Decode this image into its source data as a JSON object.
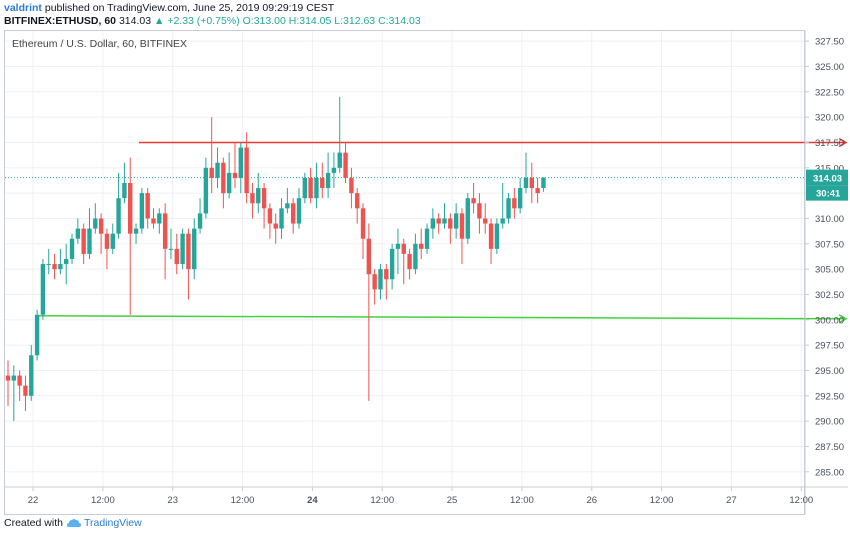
{
  "header": {
    "author": "valdrint",
    "published": "published on TradingView.com, June 25, 2019 09:29:19 CEST",
    "symbol": "BITFINEX:ETHUSD, 60",
    "last": "314.03",
    "change": "+2.33 (+0.75%)",
    "ohlc": "O:313.00 H:314.05 L:312.63 C:314.03"
  },
  "footer": {
    "created_with": "Created with",
    "brand": "TradingView"
  },
  "colors": {
    "up": "#26a69a",
    "down": "#ef5350",
    "resistance": "#e53935",
    "support": "#43d13d",
    "last_price_badge": "#26a69a",
    "grid": "#eef0f4",
    "axis": "#c8ccd6"
  },
  "chart_data": {
    "type": "candlestick",
    "title": "Ethereum / U.S. Dollar, 60, BITFINEX",
    "x_tick_labels": [
      "22",
      "12:00",
      "23",
      "12:00",
      "24",
      "12:00",
      "25",
      "12:00",
      "26",
      "12:00",
      "27",
      "12:00"
    ],
    "y_tick_labels": [
      "327.50",
      "325.00",
      "322.50",
      "320.00",
      "317.50",
      "315.00",
      "312.50",
      "310.00",
      "307.50",
      "305.00",
      "302.50",
      "300.00",
      "297.50",
      "295.00",
      "292.50",
      "290.00",
      "287.50",
      "285.00"
    ],
    "ylim": [
      283.5,
      328.5
    ],
    "last_price": "314.03",
    "countdown": "30:41",
    "x_unit": "hours since June 22 00:00",
    "resistance_line": {
      "price": 317.5,
      "x_start": 22.5,
      "x_end": 144
    },
    "support_line": {
      "price": 300.4,
      "price_end": 300.1,
      "x_start": 5,
      "x_end": 144
    },
    "candles": [
      [
        0,
        294.5,
        294.0,
        296.0,
        291.5
      ],
      [
        1,
        294.0,
        294.5,
        295.5,
        290.0
      ],
      [
        2,
        294.5,
        293.5,
        295.0,
        292.0
      ],
      [
        3,
        293.5,
        292.5,
        294.5,
        291.0
      ],
      [
        4,
        292.5,
        296.5,
        297.5,
        292.0
      ],
      [
        5,
        296.5,
        300.5,
        301.0,
        296.0
      ],
      [
        6,
        300.5,
        305.5,
        306.0,
        300.0
      ],
      [
        7,
        305.5,
        305.5,
        307.0,
        304.5
      ],
      [
        8,
        305.5,
        305.0,
        306.5,
        304.0
      ],
      [
        9,
        305.0,
        305.5,
        307.0,
        304.5
      ],
      [
        10,
        305.5,
        306.0,
        307.5,
        303.5
      ],
      [
        11,
        306.0,
        308.0,
        308.5,
        305.5
      ],
      [
        12,
        308.0,
        309.0,
        310.0,
        307.5
      ],
      [
        13,
        309.0,
        306.5,
        309.5,
        305.5
      ],
      [
        14,
        306.5,
        309.0,
        311.0,
        306.0
      ],
      [
        15,
        309.0,
        310.0,
        311.5,
        308.5
      ],
      [
        16,
        310.0,
        308.5,
        310.5,
        306.5
      ],
      [
        17,
        308.5,
        307.0,
        309.0,
        305.0
      ],
      [
        18,
        307.0,
        308.5,
        309.5,
        306.5
      ],
      [
        19,
        308.5,
        312.0,
        314.5,
        308.0
      ],
      [
        20,
        312.0,
        313.5,
        315.5,
        311.5
      ],
      [
        21,
        313.5,
        308.5,
        316.0,
        300.5
      ],
      [
        22,
        308.5,
        309.0,
        309.5,
        307.5
      ],
      [
        23,
        309.0,
        312.5,
        313.0,
        308.5
      ],
      [
        24,
        312.5,
        310.0,
        313.0,
        309.0
      ],
      [
        25,
        310.0,
        309.5,
        311.0,
        309.0
      ],
      [
        26,
        309.5,
        310.5,
        311.0,
        308.5
      ],
      [
        27,
        310.5,
        307.0,
        311.5,
        304.0
      ],
      [
        28,
        307.0,
        307.0,
        309.0,
        306.0
      ],
      [
        29,
        307.0,
        305.5,
        308.5,
        304.5
      ],
      [
        30,
        305.5,
        308.5,
        309.0,
        305.0
      ],
      [
        31,
        308.5,
        305.0,
        309.0,
        302.0
      ],
      [
        32,
        305.0,
        309.0,
        310.0,
        304.0
      ],
      [
        33,
        309.0,
        310.5,
        312.0,
        308.5
      ],
      [
        34,
        310.5,
        315.0,
        316.0,
        310.0
      ],
      [
        35,
        315.0,
        314.0,
        320.0,
        312.5
      ],
      [
        36,
        314.0,
        315.5,
        317.0,
        313.0
      ],
      [
        37,
        315.5,
        312.5,
        316.0,
        311.0
      ],
      [
        38,
        312.5,
        314.5,
        316.5,
        312.0
      ],
      [
        39,
        314.5,
        314.0,
        317.5,
        313.0
      ],
      [
        40,
        314.0,
        317.0,
        317.5,
        312.5
      ],
      [
        41,
        317.0,
        312.5,
        318.5,
        311.5
      ],
      [
        42,
        312.5,
        311.5,
        313.5,
        310.0
      ],
      [
        43,
        311.5,
        313.0,
        314.5,
        310.5
      ],
      [
        44,
        313.0,
        311.0,
        313.5,
        309.0
      ],
      [
        45,
        311.0,
        309.5,
        311.5,
        308.0
      ],
      [
        46,
        309.5,
        309.0,
        310.5,
        307.5
      ],
      [
        47,
        309.0,
        311.0,
        312.0,
        308.0
      ],
      [
        48,
        311.0,
        311.5,
        313.0,
        310.5
      ],
      [
        49,
        311.5,
        309.5,
        312.0,
        308.5
      ],
      [
        50,
        309.5,
        312.0,
        313.0,
        309.0
      ],
      [
        51,
        312.0,
        314.0,
        314.5,
        311.5
      ],
      [
        52,
        314.0,
        312.0,
        315.0,
        311.5
      ],
      [
        53,
        312.0,
        314.0,
        315.5,
        311.0
      ],
      [
        54,
        314.0,
        313.0,
        315.5,
        312.0
      ],
      [
        55,
        313.0,
        314.5,
        316.5,
        312.0
      ],
      [
        56,
        314.5,
        315.0,
        316.5,
        313.0
      ],
      [
        57,
        315.0,
        316.5,
        322.0,
        314.5
      ],
      [
        58,
        316.5,
        314.0,
        317.5,
        313.5
      ],
      [
        59,
        314.0,
        312.5,
        315.0,
        311.0
      ],
      [
        60,
        312.5,
        311.0,
        313.0,
        309.5
      ],
      [
        61,
        311.0,
        308.0,
        311.5,
        306.0
      ],
      [
        62,
        308.0,
        304.5,
        309.5,
        292.0
      ],
      [
        63,
        304.5,
        303.0,
        305.0,
        301.5
      ],
      [
        64,
        303.0,
        305.0,
        305.5,
        302.0
      ],
      [
        65,
        305.0,
        304.0,
        305.5,
        302.0
      ],
      [
        66,
        304.0,
        307.0,
        307.5,
        303.0
      ],
      [
        67,
        307.0,
        307.5,
        309.0,
        304.5
      ],
      [
        68,
        307.5,
        306.5,
        308.0,
        303.5
      ],
      [
        69,
        306.5,
        305.0,
        307.0,
        304.0
      ],
      [
        70,
        305.0,
        307.5,
        308.5,
        304.5
      ],
      [
        71,
        307.5,
        307.0,
        309.0,
        306.0
      ],
      [
        72,
        307.0,
        309.0,
        309.5,
        306.5
      ],
      [
        73,
        309.0,
        310.0,
        311.0,
        308.0
      ],
      [
        74,
        310.0,
        309.5,
        310.5,
        308.5
      ],
      [
        75,
        309.5,
        310.0,
        311.5,
        309.0
      ],
      [
        76,
        310.0,
        309.0,
        310.5,
        307.5
      ],
      [
        77,
        309.0,
        310.5,
        311.5,
        308.0
      ],
      [
        78,
        310.5,
        308.0,
        311.0,
        305.5
      ],
      [
        79,
        308.0,
        312.0,
        312.5,
        307.5
      ],
      [
        80,
        312.0,
        311.5,
        313.5,
        310.5
      ],
      [
        81,
        311.5,
        310.0,
        312.5,
        308.5
      ],
      [
        82,
        310.0,
        309.5,
        311.5,
        308.5
      ],
      [
        83,
        309.5,
        307.0,
        310.0,
        305.5
      ],
      [
        84,
        307.0,
        309.5,
        310.0,
        306.5
      ],
      [
        85,
        309.5,
        310.0,
        313.5,
        309.0
      ],
      [
        86,
        310.0,
        312.0,
        312.5,
        309.5
      ],
      [
        87,
        312.0,
        311.0,
        313.0,
        310.0
      ],
      [
        88,
        311.0,
        313.0,
        314.0,
        310.5
      ],
      [
        89,
        313.0,
        314.0,
        316.5,
        312.5
      ],
      [
        90,
        314.0,
        313.0,
        315.5,
        311.5
      ],
      [
        91,
        313.0,
        312.5,
        314.0,
        311.5
      ],
      [
        92,
        313.0,
        314.03,
        314.05,
        312.63
      ]
    ]
  }
}
